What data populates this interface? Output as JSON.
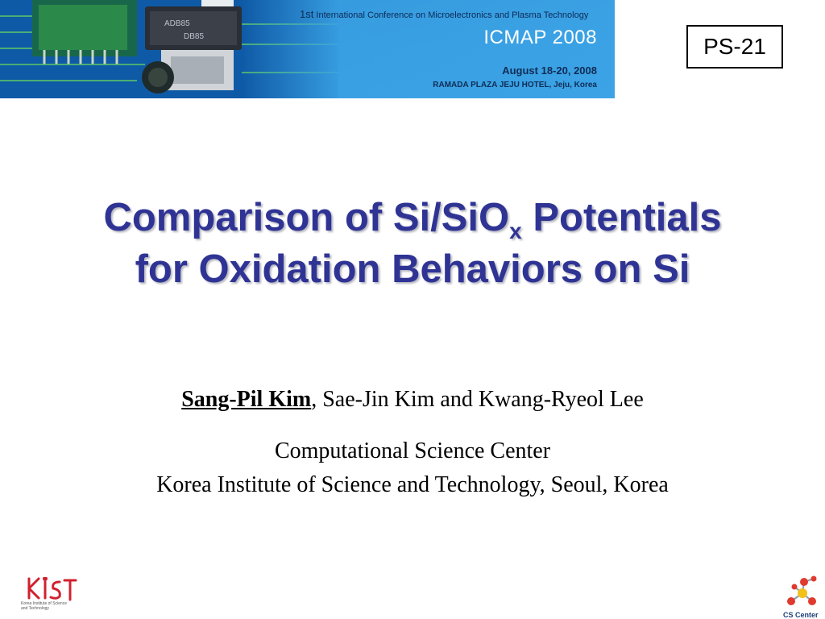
{
  "banner": {
    "conference_ordinal": "1st",
    "conference_name": "International Conference on Microelectronics and Plasma Technology",
    "acronym": "ICMAP 2008",
    "dates": "August 18-20, 2008",
    "venue": "RAMADA PLAZA JEJU HOTEL, Jeju, Korea",
    "chip_labels": [
      "ADB85",
      "DB85"
    ]
  },
  "session_code": "PS-21",
  "title": {
    "line1_before": "Comparison of Si/SiO",
    "line1_subscript": "x",
    "line1_after": " Potentials",
    "line2": "for Oxidation Behaviors on Si"
  },
  "authors": {
    "presenter": "Sang-Pil Kim",
    "others": ", Sae-Jin Kim and Kwang-Ryeol Lee"
  },
  "affiliation": {
    "center": "Computational Science Center",
    "institute": "Korea Institute of Science and Technology, Seoul, Korea"
  },
  "logos": {
    "kist_caption": "Korea Institute of Science and Technology",
    "cs_caption": "CS Center"
  },
  "colors": {
    "title": "#2f3494",
    "banner_blue": "#1a78c8",
    "kist_red": "#d1202f",
    "cs_node_red": "#e03a2f",
    "cs_node_yellow": "#f2c21b"
  }
}
